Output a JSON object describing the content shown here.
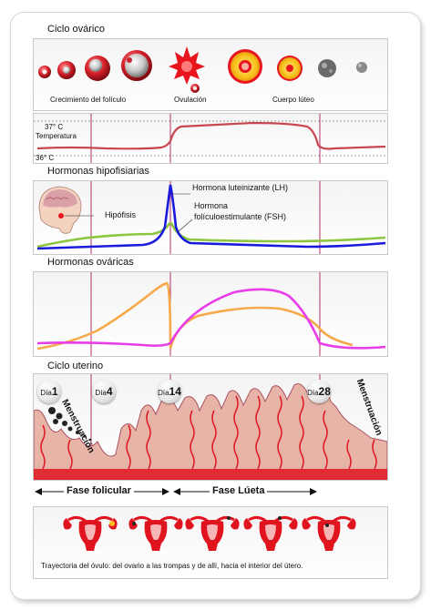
{
  "sections": {
    "ovarian_cycle": "Ciclo ovárico",
    "pituitary_hormones": "Hormonas hipofisiarias",
    "ovarian_hormones": "Hormonas ováricas",
    "uterine_cycle": "Ciclo uterino"
  },
  "ovary_labels": {
    "follicle_growth": "Crecimiento del folículo",
    "ovulation": "Ovulación",
    "corpus_luteum": "Cuerpo lúteo"
  },
  "temperature": {
    "high": "37° C",
    "label": "Temperatura",
    "low": "36° C"
  },
  "pituitary": {
    "gland": "Hipófisis",
    "lh": "Hormona luteinizante (LH)",
    "fsh_line1": "Hormona",
    "fsh_line2": "folículoestimulante (FSH)"
  },
  "days": {
    "prefix": "Día",
    "d1": "1",
    "d4": "4",
    "d14": "14",
    "d28": "28"
  },
  "menstruation": "Menstruación",
  "phases": {
    "follicular": "Fase folicular",
    "luteal": "Fase Lúeta"
  },
  "caption": "Trayectoria del óvulo: del ovario a las trompas y de allí, hacia el interior del útero.",
  "colors": {
    "temperature": "#c8474f",
    "lh": "#1a1adc",
    "fsh": "#8cc63f",
    "estrogen": "#f5a94a",
    "progesterone": "#e83de8",
    "endometrium": "#e8b4a8",
    "vessel": "#e0141e",
    "divider": "#b0306a"
  }
}
